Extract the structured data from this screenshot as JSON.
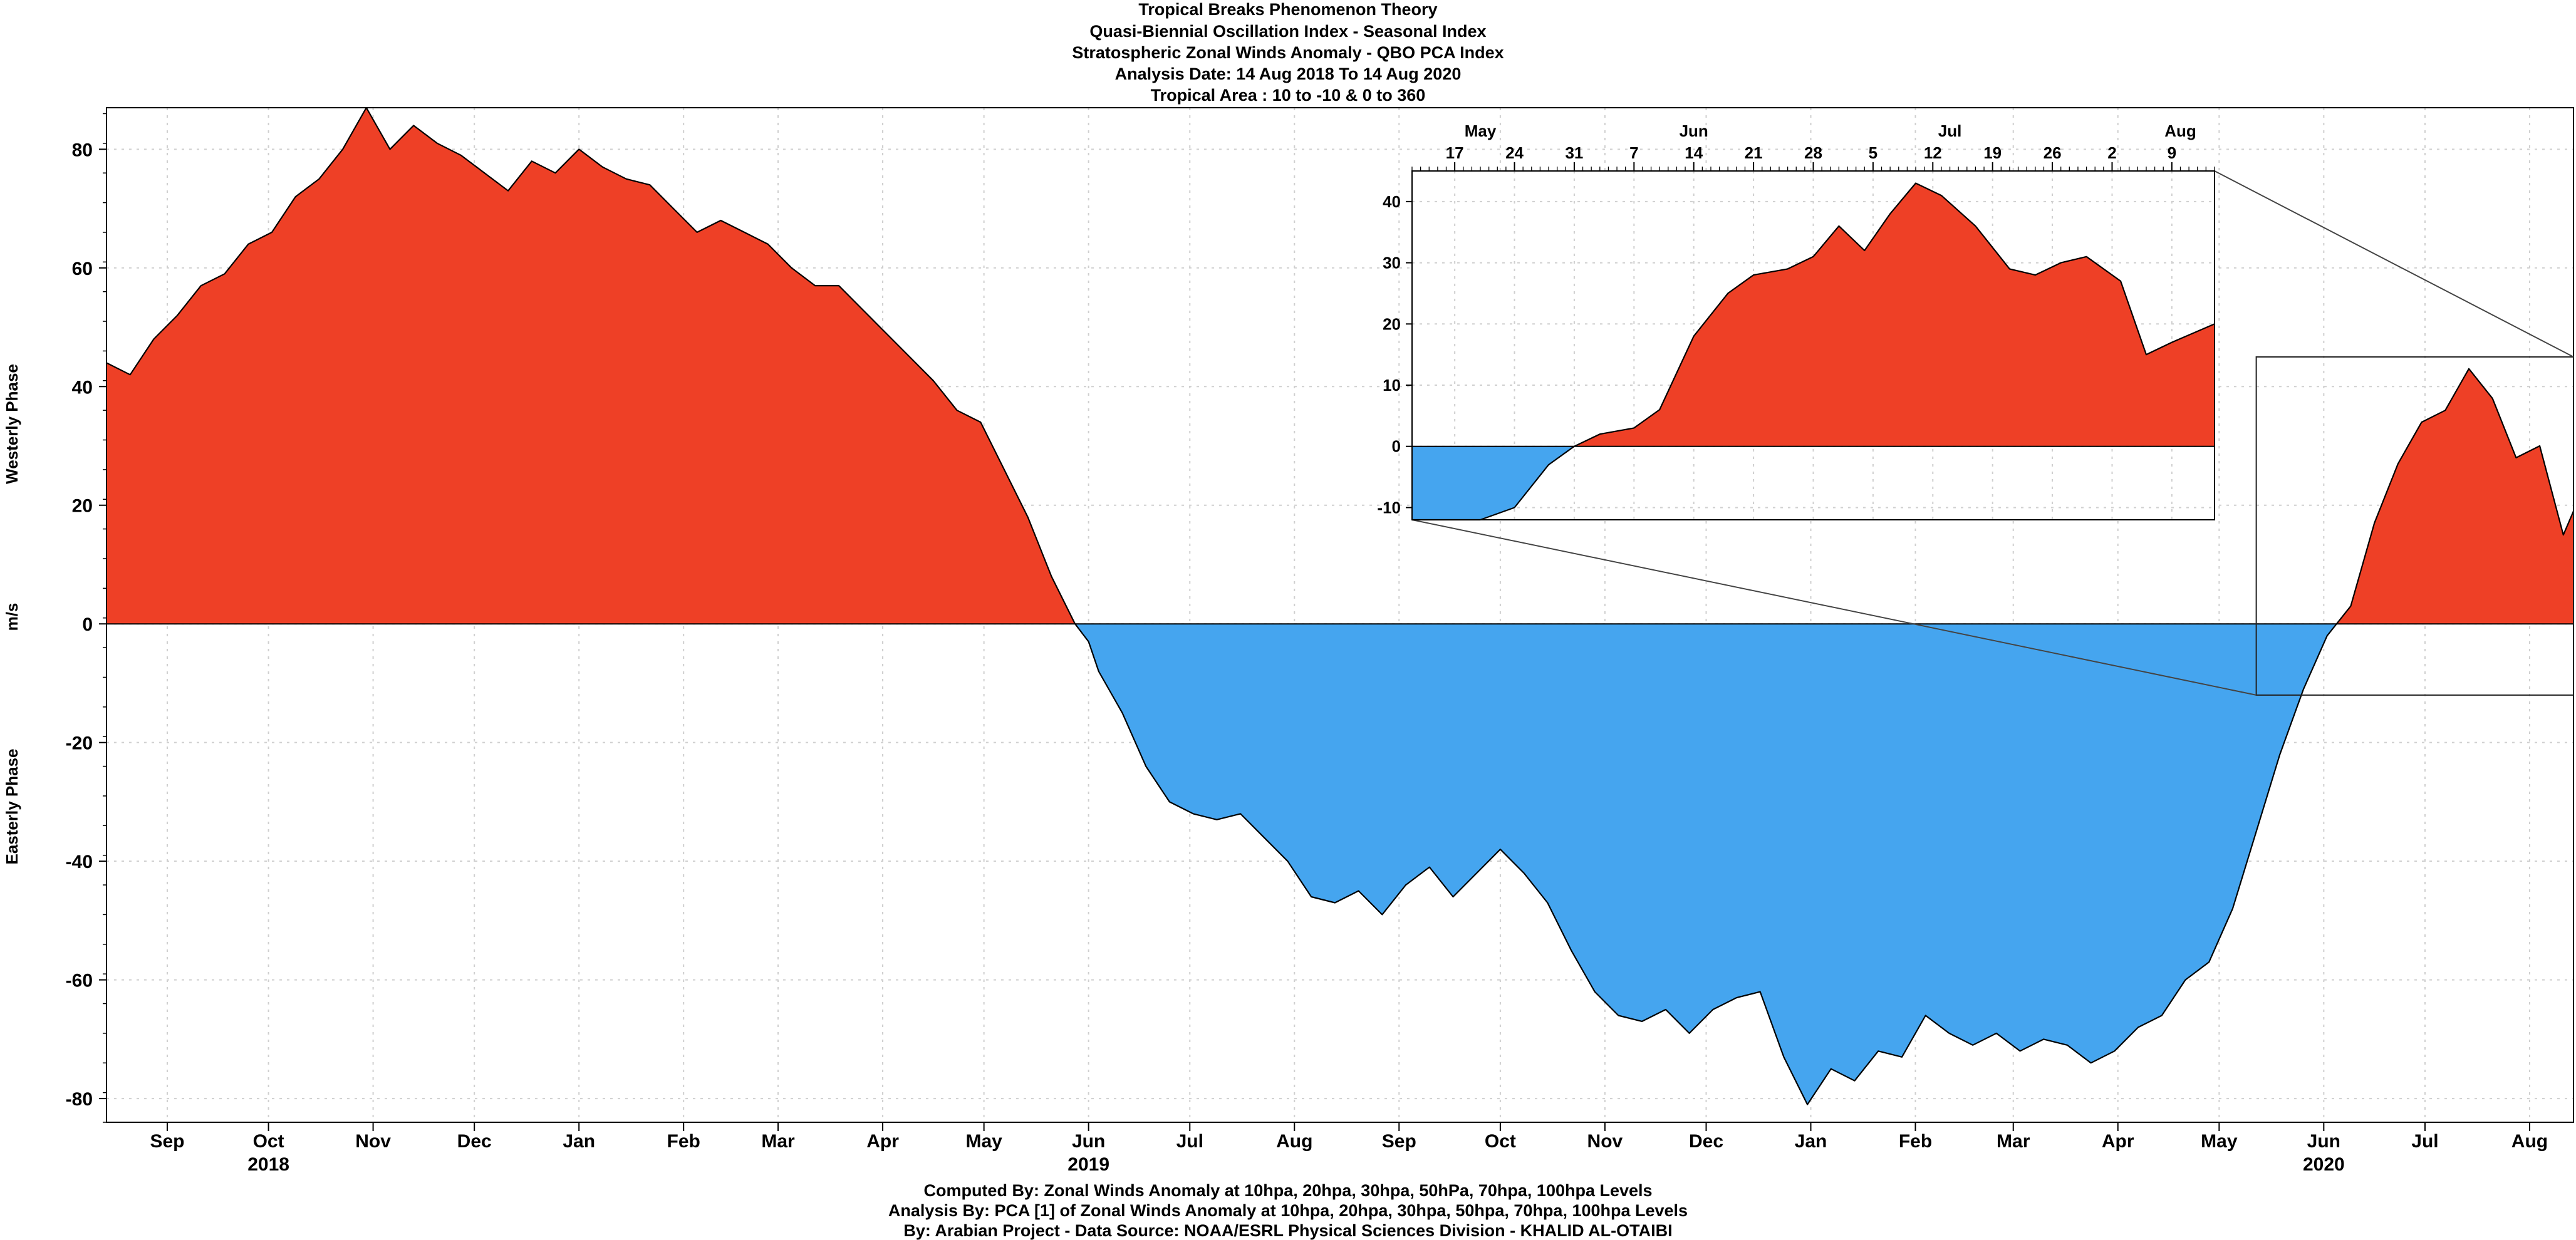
{
  "title_lines": [
    "Tropical Breaks Phenomenon Theory",
    "Quasi-Biennial Oscillation Index -  Seasonal Index",
    "Stratospheric Zonal Winds Anomaly - QBO PCA Index",
    "Analysis Date: 14 Aug 2018 To 14 Aug 2020",
    "Tropical Area : 10 to -10 & 0 to 360"
  ],
  "footer_lines": [
    "Computed By: Zonal Winds Anomaly at 10hpa, 20hpa, 30hpa, 50hPa, 70hpa, 100hpa Levels",
    "Analysis By: PCA [1] of Zonal Winds Anomaly at 10hpa, 20hpa, 30hpa, 50hpa, 70hpa, 100hpa Levels",
    "By: Arabian Project - Data Source: NOAA/ESRL Physical Sciences Division - KHALID AL-OTAIBI"
  ],
  "axis_labels": {
    "upper_phase": "Westerly Phase",
    "unit": "m/s",
    "lower_phase": "Easterly Phase"
  },
  "colors": {
    "westerly": "#EE4026",
    "easterly": "#45A5EF",
    "outline": "#000000",
    "grid": "#cfcfcf"
  },
  "chart_data": [
    {
      "type": "area",
      "title": "Stratospheric Zonal Winds Anomaly - QBO PCA Index",
      "xlabel": "",
      "ylabel": "m/s",
      "x_range": [
        "2018-08-14",
        "2020-08-14"
      ],
      "ylim": [
        -84,
        87
      ],
      "y_ticks": [
        -80,
        -60,
        -40,
        -20,
        0,
        20,
        40,
        60,
        80
      ],
      "x_month_ticks": [
        {
          "date": "2018-09-01",
          "label": "Sep"
        },
        {
          "date": "2018-10-01",
          "label": "Oct"
        },
        {
          "date": "2018-11-01",
          "label": "Nov"
        },
        {
          "date": "2018-12-01",
          "label": "Dec"
        },
        {
          "date": "2019-01-01",
          "label": "Jan"
        },
        {
          "date": "2019-02-01",
          "label": "Feb"
        },
        {
          "date": "2019-03-01",
          "label": "Mar"
        },
        {
          "date": "2019-04-01",
          "label": "Apr"
        },
        {
          "date": "2019-05-01",
          "label": "May"
        },
        {
          "date": "2019-06-01",
          "label": "Jun"
        },
        {
          "date": "2019-07-01",
          "label": "Jul"
        },
        {
          "date": "2019-08-01",
          "label": "Aug"
        },
        {
          "date": "2019-09-01",
          "label": "Sep"
        },
        {
          "date": "2019-10-01",
          "label": "Oct"
        },
        {
          "date": "2019-11-01",
          "label": "Nov"
        },
        {
          "date": "2019-12-01",
          "label": "Dec"
        },
        {
          "date": "2020-01-01",
          "label": "Jan"
        },
        {
          "date": "2020-02-01",
          "label": "Feb"
        },
        {
          "date": "2020-03-01",
          "label": "Mar"
        },
        {
          "date": "2020-04-01",
          "label": "Apr"
        },
        {
          "date": "2020-05-01",
          "label": "May"
        },
        {
          "date": "2020-06-01",
          "label": "Jun"
        },
        {
          "date": "2020-07-01",
          "label": "Jul"
        },
        {
          "date": "2020-08-01",
          "label": "Aug"
        }
      ],
      "x_year_labels": [
        {
          "date": "2018-10-01",
          "label": "2018"
        },
        {
          "date": "2019-06-01",
          "label": "2019"
        },
        {
          "date": "2020-06-01",
          "label": "2020"
        }
      ],
      "grid": true,
      "fill_above_zero": "westerly",
      "fill_below_zero": "easterly",
      "series": [
        {
          "x": [
            "2018-08-14",
            "2018-08-21",
            "2018-08-28",
            "2018-09-04",
            "2018-09-11",
            "2018-09-18",
            "2018-09-25",
            "2018-10-02",
            "2018-10-09",
            "2018-10-16",
            "2018-10-23",
            "2018-10-30",
            "2018-11-06",
            "2018-11-13",
            "2018-11-20",
            "2018-11-27",
            "2018-12-04",
            "2018-12-11",
            "2018-12-18",
            "2018-12-25",
            "2019-01-01",
            "2019-01-08",
            "2019-01-15",
            "2019-01-22",
            "2019-01-29",
            "2019-02-05",
            "2019-02-12",
            "2019-02-19",
            "2019-02-26",
            "2019-03-05",
            "2019-03-12",
            "2019-03-19",
            "2019-03-26",
            "2019-04-02",
            "2019-04-09",
            "2019-04-16",
            "2019-04-23",
            "2019-04-30",
            "2019-05-07",
            "2019-05-14",
            "2019-05-21",
            "2019-05-28",
            "2019-06-01",
            "2019-06-04",
            "2019-06-11",
            "2019-06-18",
            "2019-06-25",
            "2019-07-02",
            "2019-07-09",
            "2019-07-16",
            "2019-07-23",
            "2019-07-30",
            "2019-08-06",
            "2019-08-13",
            "2019-08-20",
            "2019-08-27",
            "2019-09-03",
            "2019-09-10",
            "2019-09-17",
            "2019-09-24",
            "2019-10-01",
            "2019-10-08",
            "2019-10-15",
            "2019-10-22",
            "2019-10-29",
            "2019-11-05",
            "2019-11-12",
            "2019-11-19",
            "2019-11-26",
            "2019-12-03",
            "2019-12-10",
            "2019-12-17",
            "2019-12-24",
            "2019-12-31",
            "2020-01-07",
            "2020-01-14",
            "2020-01-21",
            "2020-01-28",
            "2020-02-04",
            "2020-02-11",
            "2020-02-18",
            "2020-02-25",
            "2020-03-03",
            "2020-03-10",
            "2020-03-17",
            "2020-03-24",
            "2020-03-31",
            "2020-04-07",
            "2020-04-14",
            "2020-04-21",
            "2020-04-28",
            "2020-05-05",
            "2020-05-12",
            "2020-05-19",
            "2020-05-26",
            "2020-06-02",
            "2020-06-09",
            "2020-06-16",
            "2020-06-23",
            "2020-06-30",
            "2020-07-07",
            "2020-07-14",
            "2020-07-21",
            "2020-07-28",
            "2020-08-04",
            "2020-08-11",
            "2020-08-14"
          ],
          "y": [
            44,
            42,
            48,
            52,
            57,
            59,
            64,
            66,
            72,
            75,
            80,
            87,
            80,
            84,
            81,
            79,
            76,
            73,
            78,
            76,
            80,
            77,
            75,
            74,
            70,
            66,
            68,
            66,
            64,
            60,
            57,
            57,
            53,
            49,
            45,
            41,
            36,
            34,
            26,
            18,
            8,
            0,
            -3,
            -8,
            -15,
            -24,
            -30,
            -32,
            -33,
            -32,
            -36,
            -40,
            -46,
            -47,
            -45,
            -49,
            -44,
            -41,
            -46,
            -42,
            -38,
            -42,
            -47,
            -55,
            -62,
            -66,
            -67,
            -65,
            -69,
            -65,
            -63,
            -62,
            -73,
            -81,
            -75,
            -77,
            -72,
            -73,
            -66,
            -69,
            -71,
            -69,
            -72,
            -70,
            -71,
            -74,
            -72,
            -68,
            -66,
            -60,
            -57,
            -48,
            -35,
            -22,
            -11,
            -2,
            3,
            17,
            27,
            34,
            36,
            43,
            38,
            28,
            30,
            15,
            19
          ]
        }
      ]
    },
    {
      "type": "area",
      "title": "",
      "x_range": [
        "2020-05-12",
        "2020-08-14"
      ],
      "ylim": [
        -12,
        45
      ],
      "y_ticks": [
        -10,
        0,
        10,
        20,
        30,
        40
      ],
      "x_day_ticks": [
        {
          "date": "2020-05-17",
          "label": "17"
        },
        {
          "date": "2020-05-24",
          "label": "24"
        },
        {
          "date": "2020-05-31",
          "label": "31"
        },
        {
          "date": "2020-06-07",
          "label": "7"
        },
        {
          "date": "2020-06-14",
          "label": "14"
        },
        {
          "date": "2020-06-21",
          "label": "21"
        },
        {
          "date": "2020-06-28",
          "label": "28"
        },
        {
          "date": "2020-07-05",
          "label": "5"
        },
        {
          "date": "2020-07-12",
          "label": "12"
        },
        {
          "date": "2020-07-19",
          "label": "19"
        },
        {
          "date": "2020-07-26",
          "label": "26"
        },
        {
          "date": "2020-08-02",
          "label": "2"
        },
        {
          "date": "2020-08-09",
          "label": "9"
        }
      ],
      "x_month_ticks": [
        {
          "date": "2020-05-20",
          "label": "May"
        },
        {
          "date": "2020-06-14",
          "label": "Jun"
        },
        {
          "date": "2020-07-14",
          "label": "Jul"
        },
        {
          "date": "2020-08-10",
          "label": "Aug"
        }
      ],
      "grid": true,
      "series": [
        {
          "x": [
            "2020-05-12",
            "2020-05-16",
            "2020-05-20",
            "2020-05-24",
            "2020-05-28",
            "2020-05-31",
            "2020-06-03",
            "2020-06-07",
            "2020-06-10",
            "2020-06-14",
            "2020-06-18",
            "2020-06-21",
            "2020-06-25",
            "2020-06-28",
            "2020-07-01",
            "2020-07-04",
            "2020-07-07",
            "2020-07-10",
            "2020-07-13",
            "2020-07-17",
            "2020-07-21",
            "2020-07-24",
            "2020-07-27",
            "2020-07-30",
            "2020-08-03",
            "2020-08-06",
            "2020-08-09",
            "2020-08-14"
          ],
          "y": [
            -12,
            -12,
            -12,
            -10,
            -3,
            0,
            2,
            3,
            6,
            18,
            25,
            28,
            29,
            31,
            36,
            32,
            38,
            43,
            41,
            36,
            29,
            28,
            30,
            31,
            27,
            15,
            17,
            20
          ]
        }
      ]
    }
  ]
}
